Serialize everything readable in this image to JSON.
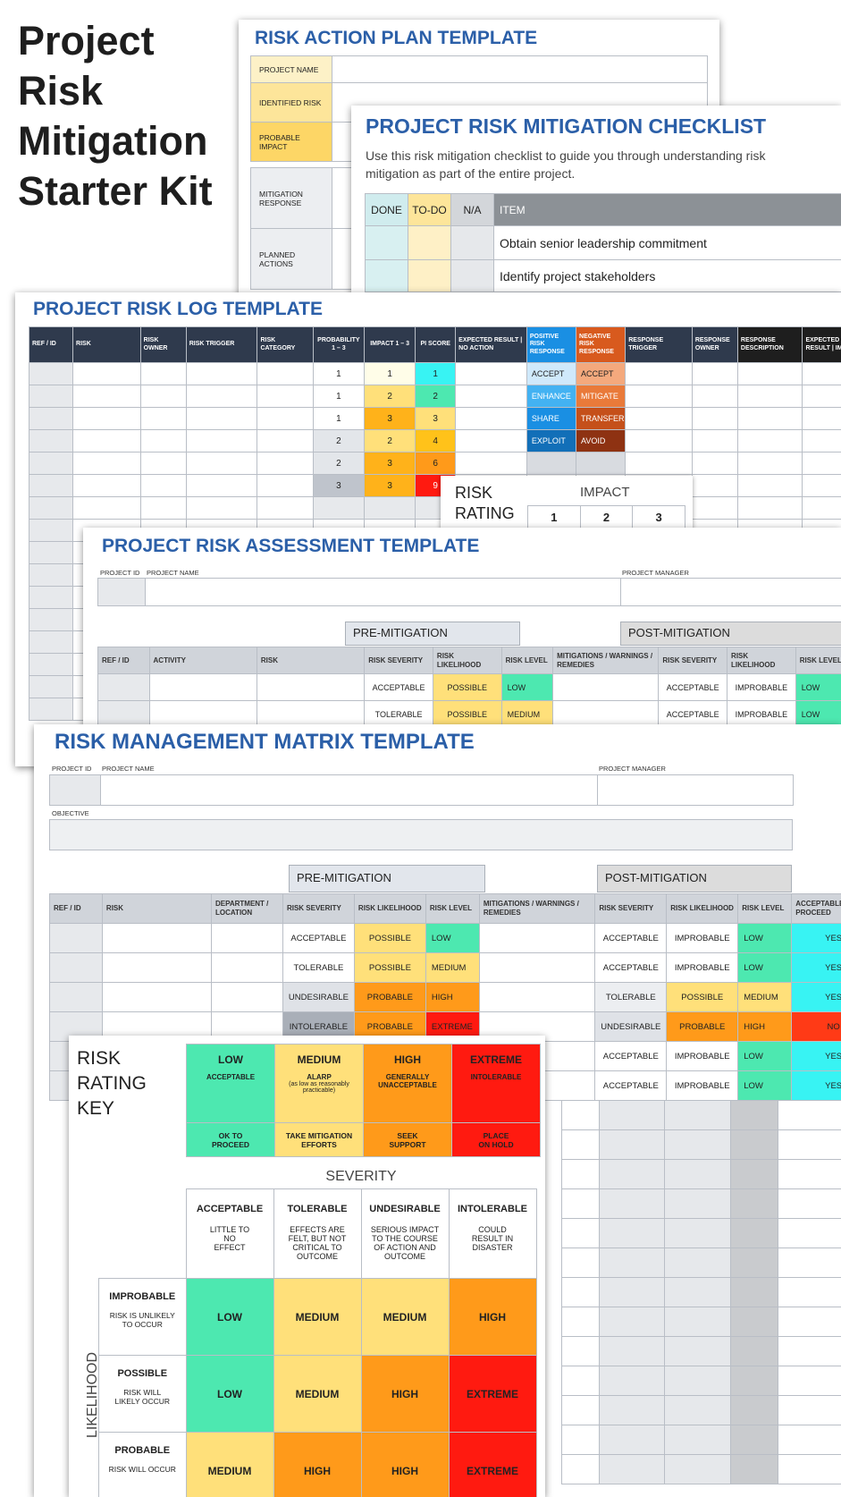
{
  "kit_title": [
    "Project",
    "Risk",
    "Mitigation",
    "Starter Kit"
  ],
  "action_plan": {
    "title": "RISK ACTION PLAN TEMPLATE",
    "rows": [
      {
        "label": "PROJECT NAME"
      },
      {
        "label": "IDENTIFIED RISK"
      },
      {
        "label": "PROBABLE IMPACT"
      },
      {
        "label": "MITIGATION RESPONSE"
      },
      {
        "label": "PLANNED ACTIONS"
      }
    ]
  },
  "checklist": {
    "title": "PROJECT RISK MITIGATION CHECKLIST",
    "description": "Use this risk mitigation checklist to guide you through understanding risk mitigation as part of the entire project.",
    "headers": [
      "DONE",
      "TO-DO",
      "N/A",
      "ITEM"
    ],
    "items": [
      "Obtain senior leadership commitment",
      "Identify project stakeholders"
    ]
  },
  "risk_log": {
    "title": "PROJECT RISK LOG TEMPLATE",
    "headers": [
      "REF / ID",
      "RISK",
      "RISK OWNER",
      "RISK TRIGGER",
      "RISK CATEGORY",
      "PROBABILITY 1 – 3",
      "IMPACT 1 – 3",
      "PI SCORE",
      "EXPECTED RESULT | NO ACTION",
      "POSITIVE RISK RESPONSE",
      "NEGATIVE RISK RESPONSE",
      "RESPONSE TRIGGER",
      "RESPONSE OWNER",
      "RESPONSE DESCRIPTION",
      "EXPECTED RESULT | IMPACT"
    ],
    "rows": [
      {
        "p": "1",
        "i": "1",
        "pi": "1",
        "pos": "ACCEPT",
        "neg": "ACCEPT"
      },
      {
        "p": "1",
        "i": "2",
        "pi": "2",
        "pos": "ENHANCE",
        "neg": "MITIGATE"
      },
      {
        "p": "1",
        "i": "3",
        "pi": "3",
        "pos": "SHARE",
        "neg": "TRANSFER"
      },
      {
        "p": "2",
        "i": "2",
        "pi": "4",
        "pos": "EXPLOIT",
        "neg": "AVOID"
      },
      {
        "p": "2",
        "i": "3",
        "pi": "6",
        "pos": "",
        "neg": ""
      },
      {
        "p": "3",
        "i": "3",
        "pi": "9",
        "pos": "",
        "neg": ""
      }
    ],
    "rating_card": {
      "label": "RISK RATING",
      "impact": "IMPACT",
      "cols": [
        "1",
        "2",
        "3"
      ]
    }
  },
  "assessment": {
    "title": "PROJECT RISK ASSESSMENT TEMPLATE",
    "project_id": "PROJECT ID",
    "project_name": "PROJECT NAME",
    "project_manager": "PROJECT MANAGER",
    "pre": "PRE-MITIGATION",
    "post": "POST-MITIGATION",
    "headers": [
      "REF / ID",
      "ACTIVITY",
      "RISK",
      "RISK SEVERITY",
      "RISK LIKELIHOOD",
      "RISK LEVEL",
      "MITIGATIONS / WARNINGS / REMEDIES",
      "RISK SEVERITY",
      "RISK LIKELIHOOD",
      "RISK LEVEL"
    ],
    "rows": [
      {
        "sev": "ACCEPTABLE",
        "lik": "POSSIBLE",
        "lvl": "LOW",
        "psev": "ACCEPTABLE",
        "plik": "IMPROBABLE",
        "plvl": "LOW"
      },
      {
        "sev": "TOLERABLE",
        "lik": "POSSIBLE",
        "lvl": "MEDIUM",
        "psev": "ACCEPTABLE",
        "plik": "IMPROBABLE",
        "plvl": "LOW"
      }
    ]
  },
  "matrix": {
    "title": "RISK MANAGEMENT MATRIX TEMPLATE",
    "project_id": "PROJECT ID",
    "project_name": "PROJECT NAME",
    "project_manager": "PROJECT MANAGER",
    "objective": "OBJECTIVE",
    "pre": "PRE-MITIGATION",
    "post": "POST-MITIGATION",
    "headers": [
      "REF / ID",
      "RISK",
      "DEPARTMENT / LOCATION",
      "RISK SEVERITY",
      "RISK LIKELIHOOD",
      "RISK LEVEL",
      "MITIGATIONS / WARNINGS / REMEDIES",
      "RISK SEVERITY",
      "RISK LIKELIHOOD",
      "RISK LEVEL",
      "ACCEPTABLE TO PROCEED"
    ],
    "rows": [
      {
        "sev": "ACCEPTABLE",
        "lik": "POSSIBLE",
        "lvl": "LOW",
        "psev": "ACCEPTABLE",
        "plik": "IMPROBABLE",
        "plvl": "LOW",
        "ok": "YES"
      },
      {
        "sev": "TOLERABLE",
        "lik": "POSSIBLE",
        "lvl": "MEDIUM",
        "psev": "ACCEPTABLE",
        "plik": "IMPROBABLE",
        "plvl": "LOW",
        "ok": "YES"
      },
      {
        "sev": "UNDESIRABLE",
        "lik": "PROBABLE",
        "lvl": "HIGH",
        "psev": "TOLERABLE",
        "plik": "POSSIBLE",
        "plvl": "MEDIUM",
        "ok": "YES"
      },
      {
        "sev": "INTOLERABLE",
        "lik": "PROBABLE",
        "lvl": "EXTREME",
        "psev": "UNDESIRABLE",
        "plik": "PROBABLE",
        "plvl": "HIGH",
        "ok": "NO"
      },
      {
        "sev": "",
        "lik": "",
        "lvl": "",
        "psev": "ACCEPTABLE",
        "plik": "IMPROBABLE",
        "plvl": "LOW",
        "ok": "YES"
      },
      {
        "sev": "",
        "lik": "",
        "lvl": "",
        "psev": "ACCEPTABLE",
        "plik": "IMPROBABLE",
        "plvl": "LOW",
        "ok": "YES"
      }
    ]
  },
  "key": {
    "title": [
      "RISK",
      "RATING",
      "KEY"
    ],
    "levels": [
      {
        "name": "LOW",
        "desc": "ACCEPTABLE",
        "sub": "",
        "action": "OK TO PROCEED"
      },
      {
        "name": "MEDIUM",
        "desc": "ALARP",
        "sub": "(as low as reasonably practicable)",
        "action": "TAKE MITIGATION EFFORTS"
      },
      {
        "name": "HIGH",
        "desc": "GENERALLY UNACCEPTABLE",
        "sub": "",
        "action": "SEEK SUPPORT"
      },
      {
        "name": "EXTREME",
        "desc": "INTOLERABLE",
        "sub": "",
        "action": "PLACE ON HOLD"
      }
    ],
    "severity_label": "SEVERITY",
    "likelihood_label": "LIKELIHOOD",
    "severity": [
      {
        "name": "ACCEPTABLE",
        "desc": "LITTLE TO NO EFFECT"
      },
      {
        "name": "TOLERABLE",
        "desc": "EFFECTS ARE FELT, BUT NOT CRITICAL TO OUTCOME"
      },
      {
        "name": "UNDESIRABLE",
        "desc": "SERIOUS IMPACT TO THE COURSE OF ACTION AND OUTCOME"
      },
      {
        "name": "INTOLERABLE",
        "desc": "COULD RESULT IN DISASTER"
      }
    ],
    "likelihood": [
      {
        "name": "IMPROBABLE",
        "desc": "RISK IS UNLIKELY TO OCCUR",
        "cells": [
          "LOW",
          "MEDIUM",
          "MEDIUM",
          "HIGH"
        ]
      },
      {
        "name": "POSSIBLE",
        "desc": "RISK WILL LIKELY OCCUR",
        "cells": [
          "LOW",
          "MEDIUM",
          "HIGH",
          "EXTREME"
        ]
      },
      {
        "name": "PROBABLE",
        "desc": "RISK WILL OCCUR",
        "cells": [
          "MEDIUM",
          "HIGH",
          "HIGH",
          "EXTREME"
        ]
      }
    ]
  }
}
